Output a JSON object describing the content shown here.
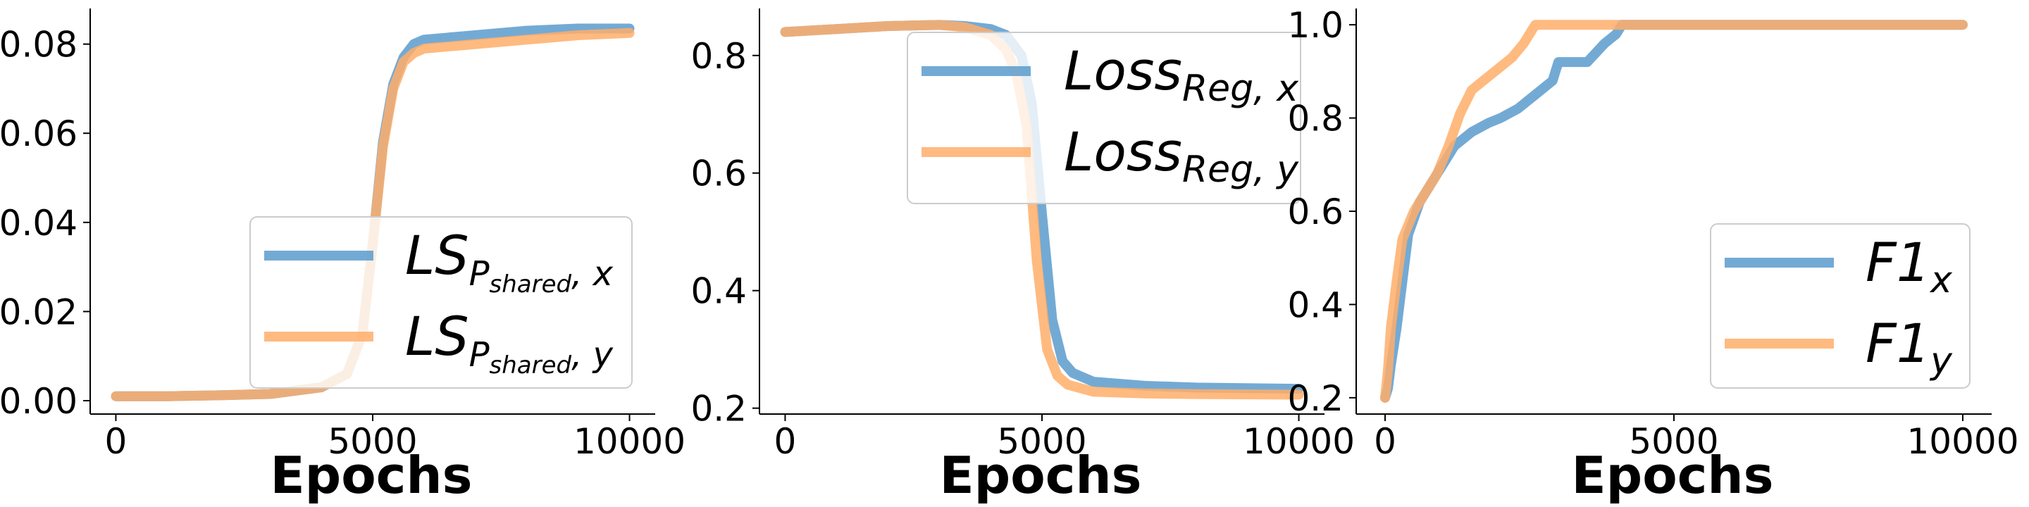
{
  "colors": {
    "x": "#5b9bcc",
    "y": "#ffae6a",
    "overlap": "#c9915a"
  },
  "chart_data": [
    {
      "type": "line",
      "xlabel": "Epochs",
      "ylabel": "",
      "xlim": [
        -500,
        10500
      ],
      "ylim": [
        -0.003,
        0.088
      ],
      "xticks": [
        0,
        5000,
        10000
      ],
      "xtick_labels": [
        "0",
        "5000",
        "10000"
      ],
      "yticks": [
        0.0,
        0.02,
        0.04,
        0.06,
        0.08
      ],
      "ytick_labels": [
        "0.00",
        "0.02",
        "0.04",
        "0.06",
        "0.08"
      ],
      "grid": false,
      "legend_position": "lower-right",
      "legend": [
        {
          "main": "LS",
          "sub": "P",
          "subsub": "shared",
          "tail": ", x"
        },
        {
          "main": "LS",
          "sub": "P",
          "subsub": "shared",
          "tail": ", y"
        }
      ],
      "series": [
        {
          "key": "x",
          "x": [
            0,
            1000,
            2000,
            3000,
            4000,
            4500,
            4800,
            5000,
            5200,
            5400,
            5600,
            5800,
            6000,
            7000,
            8000,
            9000,
            10000
          ],
          "values": [
            0.001,
            0.001,
            0.0012,
            0.0015,
            0.003,
            0.006,
            0.015,
            0.035,
            0.058,
            0.071,
            0.077,
            0.08,
            0.081,
            0.082,
            0.083,
            0.0835,
            0.0835
          ]
        },
        {
          "key": "y",
          "x": [
            0,
            1000,
            2000,
            3000,
            4000,
            4500,
            4800,
            5000,
            5200,
            5400,
            5600,
            5800,
            6000,
            7000,
            8000,
            9000,
            10000
          ],
          "values": [
            0.001,
            0.001,
            0.0012,
            0.0015,
            0.003,
            0.006,
            0.015,
            0.035,
            0.057,
            0.07,
            0.076,
            0.078,
            0.079,
            0.08,
            0.081,
            0.082,
            0.0825
          ]
        }
      ]
    },
    {
      "type": "line",
      "xlabel": "Epochs",
      "ylabel": "",
      "xlim": [
        -500,
        10500
      ],
      "ylim": [
        0.19,
        0.88
      ],
      "xticks": [
        0,
        5000,
        10000
      ],
      "xtick_labels": [
        "0",
        "5000",
        "10000"
      ],
      "yticks": [
        0.2,
        0.4,
        0.6,
        0.8
      ],
      "ytick_labels": [
        "0.2",
        "0.4",
        "0.6",
        "0.8"
      ],
      "grid": false,
      "legend_position": "upper-right",
      "legend": [
        {
          "main": "Loss",
          "sub": "Reg, x"
        },
        {
          "main": "Loss",
          "sub": "Reg, y"
        }
      ],
      "series": [
        {
          "key": "x",
          "x": [
            0,
            1000,
            2000,
            3000,
            3500,
            4000,
            4300,
            4600,
            4800,
            5000,
            5200,
            5400,
            5600,
            6000,
            7000,
            8000,
            10000
          ],
          "values": [
            0.84,
            0.845,
            0.85,
            0.852,
            0.85,
            0.845,
            0.835,
            0.8,
            0.72,
            0.53,
            0.35,
            0.28,
            0.26,
            0.245,
            0.238,
            0.235,
            0.233
          ]
        },
        {
          "key": "y",
          "x": [
            0,
            1000,
            2000,
            3000,
            3500,
            4000,
            4300,
            4500,
            4700,
            4900,
            5100,
            5300,
            5500,
            6000,
            7000,
            8000,
            10000
          ],
          "values": [
            0.84,
            0.845,
            0.85,
            0.852,
            0.848,
            0.835,
            0.81,
            0.77,
            0.68,
            0.45,
            0.3,
            0.255,
            0.24,
            0.228,
            0.225,
            0.224,
            0.223
          ]
        }
      ]
    },
    {
      "type": "line",
      "xlabel": "Epochs",
      "ylabel": "",
      "xlim": [
        -500,
        10500
      ],
      "ylim": [
        0.165,
        1.035
      ],
      "xticks": [
        0,
        5000,
        10000
      ],
      "xtick_labels": [
        "0",
        "5000",
        "10000"
      ],
      "yticks": [
        0.2,
        0.4,
        0.6,
        0.8,
        1.0
      ],
      "ytick_labels": [
        "0.2",
        "0.4",
        "0.6",
        "0.8",
        "1.0"
      ],
      "grid": false,
      "legend_position": "lower-right",
      "legend": [
        {
          "main": "F1",
          "sub": "x"
        },
        {
          "main": "F1",
          "sub": "y"
        }
      ],
      "series": [
        {
          "key": "x",
          "x": [
            0,
            50,
            100,
            200,
            300,
            400,
            600,
            800,
            1000,
            1200,
            1500,
            1800,
            2000,
            2300,
            2600,
            2900,
            3000,
            3500,
            3800,
            4000,
            4100,
            4500,
            10000
          ],
          "values": [
            0.2,
            0.22,
            0.27,
            0.35,
            0.45,
            0.55,
            0.62,
            0.66,
            0.7,
            0.74,
            0.77,
            0.79,
            0.8,
            0.82,
            0.85,
            0.88,
            0.92,
            0.92,
            0.96,
            0.98,
            1.0,
            1.0,
            1.0
          ]
        },
        {
          "key": "y",
          "x": [
            0,
            50,
            100,
            200,
            300,
            500,
            700,
            900,
            1100,
            1300,
            1500,
            1700,
            2000,
            2200,
            2400,
            2600,
            3000,
            10000
          ],
          "values": [
            0.2,
            0.26,
            0.35,
            0.45,
            0.54,
            0.6,
            0.64,
            0.68,
            0.74,
            0.81,
            0.86,
            0.88,
            0.91,
            0.93,
            0.96,
            1.0,
            1.0,
            1.0
          ]
        }
      ]
    }
  ]
}
